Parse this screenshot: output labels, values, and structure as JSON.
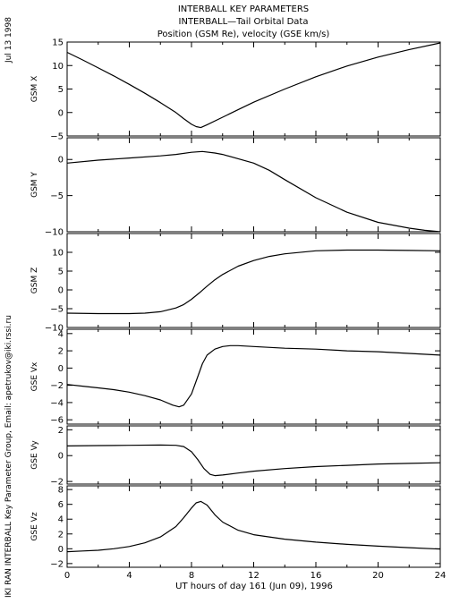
{
  "header": {
    "title1": "INTERBALL KEY PARAMETERS",
    "title2": "INTERBALL—Tail Orbital Data",
    "title3": "Position (GSM Re), velocity (GSE km/s)"
  },
  "side": {
    "date": "Jul 13 1998",
    "credit": "IKI RAN INTERBALL Key Parameter Group, Email: apetrukov@iki.rssi.ru"
  },
  "chart_data": {
    "type": "line",
    "xlabel": "UT hours of day 161 (Jun 09), 1996",
    "xlim": [
      0,
      24
    ],
    "xticks": [
      0,
      4,
      8,
      12,
      16,
      20,
      24
    ],
    "panels": [
      {
        "ylabel": "GSM X",
        "ylim": [
          -5,
          15
        ],
        "yticks": [
          -5,
          0,
          5,
          10,
          15
        ],
        "x": [
          0,
          1,
          2,
          3,
          4,
          5,
          6,
          7,
          7.5,
          8,
          8.3,
          8.6,
          9,
          10,
          11,
          12,
          14,
          16,
          18,
          20,
          22,
          24
        ],
        "y": [
          12.8,
          11.2,
          9.5,
          7.8,
          6.0,
          4.1,
          2.1,
          0.0,
          -1.3,
          -2.5,
          -3.0,
          -3.2,
          -2.6,
          -1.0,
          0.6,
          2.2,
          5.0,
          7.6,
          9.9,
          11.8,
          13.4,
          14.8
        ]
      },
      {
        "ylabel": "GSM Y",
        "ylim": [
          -10,
          3
        ],
        "yticks": [
          -10,
          -5,
          0
        ],
        "x": [
          0,
          2,
          4,
          6,
          7,
          8,
          8.7,
          9.5,
          10,
          12,
          13,
          14,
          16,
          18,
          20,
          22,
          23,
          24
        ],
        "y": [
          -0.5,
          -0.1,
          0.2,
          0.5,
          0.7,
          1.0,
          1.1,
          0.9,
          0.7,
          -0.5,
          -1.5,
          -2.8,
          -5.3,
          -7.3,
          -8.7,
          -9.5,
          -9.8,
          -10.0
        ]
      },
      {
        "ylabel": "GSM Z",
        "ylim": [
          -10,
          15
        ],
        "yticks": [
          -10,
          -5,
          0,
          5,
          10
        ],
        "x": [
          0,
          2,
          4,
          5,
          6,
          7,
          7.5,
          8,
          8.5,
          9,
          9.5,
          10,
          11,
          12,
          13,
          14,
          16,
          18,
          20,
          22,
          24
        ],
        "y": [
          -6.2,
          -6.3,
          -6.3,
          -6.2,
          -5.8,
          -4.8,
          -3.9,
          -2.5,
          -0.8,
          1.0,
          2.7,
          4.1,
          6.3,
          7.8,
          8.9,
          9.6,
          10.4,
          10.6,
          10.6,
          10.5,
          10.4
        ]
      },
      {
        "ylabel": "GSE Vx",
        "ylim": [
          -6.5,
          4.5
        ],
        "yticks": [
          -6,
          -4,
          -2,
          0,
          2,
          4
        ],
        "x": [
          0,
          1,
          2,
          3,
          4,
          5,
          6,
          6.8,
          7.2,
          7.5,
          8,
          8.4,
          8.7,
          9,
          9.5,
          10,
          10.5,
          11,
          12,
          14,
          16,
          18,
          20,
          22,
          24
        ],
        "y": [
          -1.9,
          -2.1,
          -2.3,
          -2.5,
          -2.8,
          -3.2,
          -3.7,
          -4.3,
          -4.5,
          -4.3,
          -3.0,
          -1.0,
          0.5,
          1.5,
          2.2,
          2.5,
          2.6,
          2.6,
          2.5,
          2.3,
          2.2,
          2.0,
          1.9,
          1.7,
          1.5
        ]
      },
      {
        "ylabel": "GSE Vy",
        "ylim": [
          -2.2,
          2.3
        ],
        "yticks": [
          -2,
          0,
          2
        ],
        "x": [
          0,
          2,
          4,
          6,
          7,
          7.5,
          8,
          8.4,
          8.8,
          9.2,
          9.5,
          10,
          11,
          12,
          14,
          16,
          18,
          20,
          22,
          24
        ],
        "y": [
          0.75,
          0.78,
          0.8,
          0.82,
          0.8,
          0.7,
          0.3,
          -0.3,
          -1.0,
          -1.45,
          -1.55,
          -1.5,
          -1.35,
          -1.2,
          -1.0,
          -0.85,
          -0.75,
          -0.65,
          -0.6,
          -0.55
        ]
      },
      {
        "ylabel": "GSE Vz",
        "ylim": [
          -2.5,
          8.5
        ],
        "yticks": [
          -2,
          0,
          2,
          4,
          6,
          8
        ],
        "x": [
          0,
          1,
          2,
          3,
          4,
          5,
          6,
          7,
          7.5,
          8,
          8.3,
          8.6,
          9,
          9.5,
          10,
          11,
          12,
          14,
          16,
          18,
          20,
          22,
          24
        ],
        "y": [
          -0.4,
          -0.3,
          -0.2,
          0.0,
          0.3,
          0.8,
          1.6,
          3.0,
          4.2,
          5.5,
          6.2,
          6.4,
          5.9,
          4.6,
          3.6,
          2.5,
          1.9,
          1.3,
          0.9,
          0.6,
          0.35,
          0.15,
          -0.05
        ]
      }
    ]
  }
}
